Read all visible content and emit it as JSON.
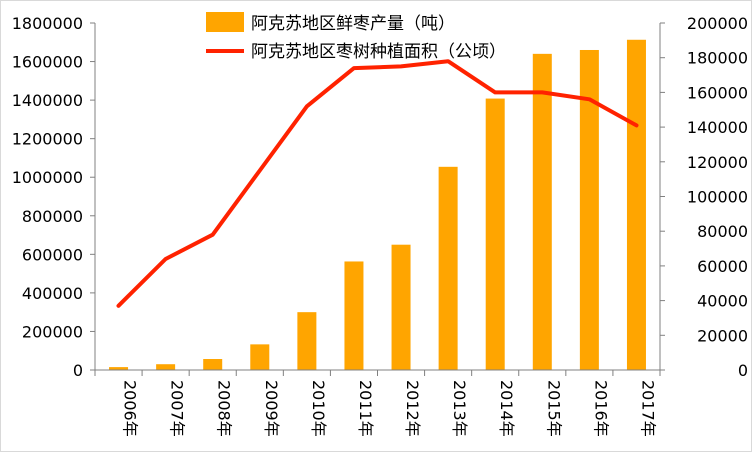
{
  "chart_data": {
    "type": "bar",
    "categories": [
      "2006年",
      "2007年",
      "2008年",
      "2009年",
      "2010年",
      "2011年",
      "2012年",
      "2013年",
      "2014年",
      "2015年",
      "2016年",
      "2017年"
    ],
    "series": [
      {
        "name": "阿克苏地区鲜枣产量（吨）",
        "chart_type": "bar",
        "axis": "left",
        "color": "#FFA500",
        "values": [
          15000,
          30000,
          57000,
          133000,
          300000,
          563000,
          650000,
          1054000,
          1408000,
          1640000,
          1660000,
          1713000
        ]
      },
      {
        "name": "阿克苏地区枣树种植面积（公顷）",
        "chart_type": "line",
        "axis": "right",
        "color": "#FF2200",
        "values": [
          37000,
          64000,
          78000,
          115000,
          152000,
          174000,
          175000,
          178000,
          160000,
          160000,
          156000,
          141000
        ]
      }
    ],
    "y_left": {
      "min": 0,
      "max": 1800000,
      "step": 200000,
      "ticks": [
        "0",
        "200000",
        "400000",
        "600000",
        "800000",
        "1000000",
        "1200000",
        "1400000",
        "1600000",
        "1800000"
      ]
    },
    "y_right": {
      "min": 0,
      "max": 200000,
      "step": 20000,
      "ticks": [
        "0",
        "20000",
        "40000",
        "60000",
        "80000",
        "100000",
        "120000",
        "140000",
        "160000",
        "180000",
        "200000"
      ]
    },
    "grid": false,
    "legend_position": "top-center"
  }
}
